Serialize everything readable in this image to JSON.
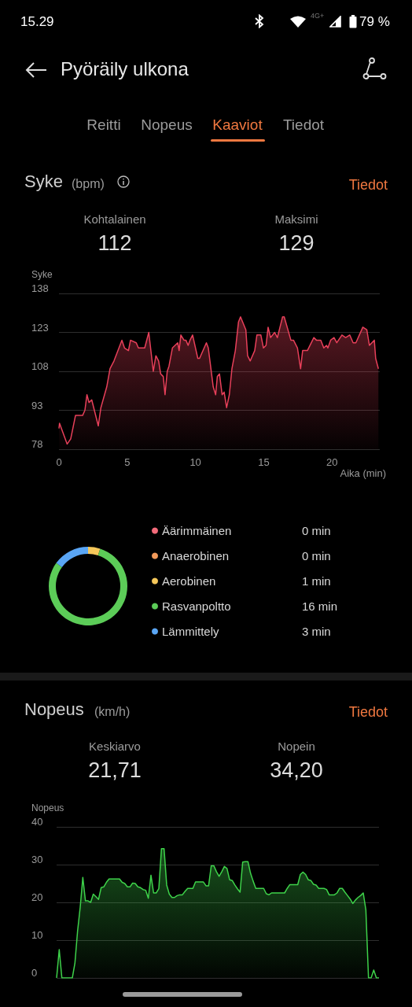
{
  "chart_data": [
    {
      "type": "area",
      "title": "Syke",
      "subtitle": "(bpm)",
      "ylabel": "Syke",
      "xlabel": "Aika (min)",
      "annotations": [
        "15.29",
        "4G+",
        "79 %",
        "Pyöräily ulkona",
        "Reitti",
        "Nopeus",
        "Kaaviot",
        "Tiedot",
        "Tiedot",
        "Kohtalainen",
        "112",
        "Maksimi",
        "129"
      ],
      "x": [
        0,
        0.04,
        0.6,
        0.86,
        1.21,
        1.73,
        1.9,
        2.05,
        2.2,
        2.4,
        2.88,
        3.07,
        3.5,
        3.74,
        4.03,
        4.61,
        4.8,
        5.09,
        5.24,
        5.66,
        5.82,
        6.28,
        6.58,
        6.91,
        7.1,
        7.3,
        7.45,
        7.64,
        7.77,
        7.93,
        8.06,
        8.31,
        8.7,
        8.8,
        8.93,
        9.16,
        9.3,
        9.46,
        9.6,
        9.79,
        10.17,
        10.3,
        10.8,
        10.94,
        11.3,
        11.48,
        11.6,
        11.76,
        11.95,
        12.1,
        12.28,
        12.48,
        12.67,
        12.92,
        13.15,
        13.3,
        13.69,
        13.82,
        14.01,
        14.34,
        14.5,
        14.79,
        14.98,
        15.17,
        15.32,
        15.5,
        15.8,
        16.0,
        16.38,
        16.5,
        16.99,
        17.18,
        17.47,
        17.7,
        17.85,
        18.2,
        18.67,
        18.86,
        19.18,
        19.4,
        19.6,
        19.7,
        19.9,
        20.15,
        20.35,
        20.73,
        21.0,
        21.3,
        21.55,
        21.75,
        22.26,
        22.55,
        22.74,
        23.1,
        23.2,
        23.4
      ],
      "values": [
        86,
        88,
        80,
        82,
        91,
        91,
        93,
        99,
        96,
        97,
        87,
        94,
        102,
        109,
        112,
        120,
        117,
        116,
        120,
        119,
        117,
        117,
        123,
        108,
        114,
        112,
        107,
        106,
        99,
        108,
        110,
        117,
        119,
        116,
        122,
        120,
        120,
        118,
        120,
        122,
        113,
        113,
        119,
        117,
        102,
        99,
        106,
        107,
        99,
        100,
        94,
        99,
        109,
        116,
        127,
        129,
        124,
        114,
        112,
        116,
        122,
        122,
        117,
        118,
        125,
        121,
        123,
        121,
        129,
        129,
        120,
        120,
        117,
        109,
        116,
        116,
        121,
        120,
        120,
        117,
        118,
        117,
        120,
        121,
        119,
        122,
        121,
        122,
        119,
        119,
        125,
        124,
        118,
        120,
        113,
        109
      ],
      "color": "#e8405a",
      "xlim": [
        0,
        23.5
      ],
      "ylim": [
        78,
        138
      ],
      "xticks": [
        0,
        5,
        10,
        15,
        20
      ],
      "yticks": [
        78,
        93,
        108,
        123,
        138
      ],
      "grid": "y"
    },
    {
      "type": "donut",
      "categories": [
        "Äärimmäinen",
        "Anaerobinen",
        "Aerobinen",
        "Rasvanpoltto",
        "Lämmittely"
      ],
      "values": [
        0,
        0,
        1,
        16,
        3
      ],
      "colors": [
        "#f36b7a",
        "#f39a5a",
        "#f5c75a",
        "#5ccc58",
        "#5aa6f5"
      ],
      "value_labels": [
        "0 min",
        "0 min",
        "1 min",
        "16 min",
        "3 min"
      ],
      "legend": "right"
    },
    {
      "type": "area",
      "title": "Nopeus",
      "subtitle": "(km/h)",
      "ylabel": "Nopeus",
      "annotations": [
        "Tiedot",
        "Keskiarvo",
        "21,71",
        "Nopein",
        "34,20"
      ],
      "categories": [
        null,
        null,
        null,
        null,
        null,
        null,
        null,
        null,
        null,
        null,
        null,
        null,
        null,
        null,
        null,
        null,
        null,
        null,
        null,
        null,
        null,
        null,
        null,
        null,
        null,
        null,
        null,
        null,
        null,
        null,
        null,
        null,
        null,
        null,
        null,
        null,
        null,
        null,
        null,
        null,
        null,
        null,
        null,
        null,
        null,
        null,
        null,
        null,
        null,
        null,
        null,
        null,
        null,
        null,
        null,
        null,
        null,
        null,
        null,
        null,
        null,
        null,
        null,
        null,
        null,
        null,
        null,
        null,
        null,
        null,
        null,
        null,
        null,
        null,
        null,
        null,
        null,
        null,
        null,
        null,
        null,
        null,
        null,
        null,
        null,
        null,
        null,
        null,
        null,
        null,
        null,
        null,
        null,
        null,
        null,
        null,
        null,
        null,
        null,
        null,
        null,
        null,
        null,
        null,
        null,
        null,
        null,
        null,
        null,
        null,
        null,
        null,
        null,
        null,
        null,
        null,
        null,
        null,
        null,
        null,
        null,
        null,
        null,
        null
      ],
      "values": [
        0,
        7.5,
        0,
        0,
        0,
        0,
        0,
        4,
        12.4,
        18.7,
        26.6,
        20.4,
        20.4,
        20,
        22.2,
        21.5,
        20.8,
        23.9,
        24.1,
        25.3,
        26.2,
        26.2,
        26.2,
        26.2,
        26.2,
        25.3,
        25,
        24.1,
        24.1,
        25.1,
        25,
        24.1,
        23.9,
        23.4,
        23.2,
        21.1,
        27.2,
        22.5,
        22.5,
        23.6,
        34.2,
        34.2,
        24.6,
        22.2,
        21.3,
        21.3,
        21.8,
        22,
        22,
        22.9,
        23.7,
        23.7,
        23.7,
        25.4,
        25.4,
        25.4,
        25.4,
        24.4,
        24.4,
        29.7,
        29.7,
        28.1,
        26.9,
        28.1,
        29.5,
        29,
        26,
        25.8,
        24.6,
        23.6,
        22.7,
        30.7,
        30.8,
        30.8,
        27.7,
        25.6,
        23.7,
        23.7,
        23.7,
        23.7,
        22.3,
        22,
        22.5,
        22.5,
        22.5,
        22.5,
        22.5,
        22.5,
        23.7,
        24.7,
        24.7,
        24.7,
        24.7,
        27.4,
        28,
        27.4,
        26,
        25.8,
        24.8,
        24.6,
        23.7,
        23.7,
        23.7,
        23.4,
        22,
        22,
        22,
        22.5,
        23.7,
        23.7,
        22.7,
        21.8,
        20.9,
        19.7,
        20.6,
        21.3,
        21.8,
        22.5,
        18,
        0,
        0,
        2.1,
        0,
        0
      ],
      "color": "#3ed24a",
      "ylim": [
        0,
        40
      ],
      "yticks": [
        0,
        10,
        20,
        30,
        40
      ],
      "grid": "y",
      "tick_labels": "y"
    }
  ]
}
